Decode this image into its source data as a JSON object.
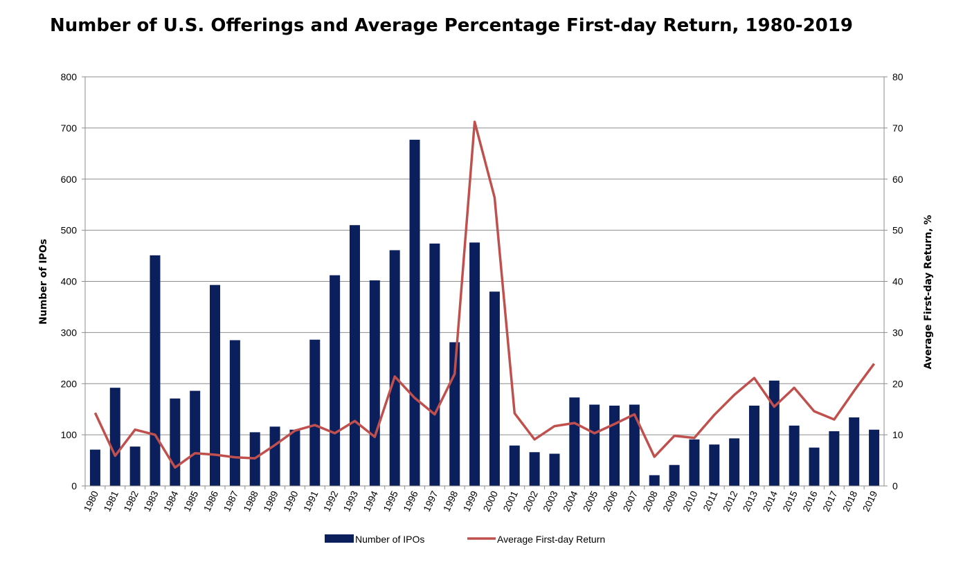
{
  "chart_data": {
    "type": "bar",
    "title": "Number of U.S. Offerings and Average Percentage First-day Return, 1980-2019",
    "xlabel": "",
    "ylabel": "Number of IPOs",
    "y2label": "Average First-day Return, %",
    "ylim": [
      0,
      800
    ],
    "y2lim": [
      0,
      80
    ],
    "yticks": [
      "0",
      "100",
      "200",
      "300",
      "400",
      "500",
      "600",
      "700",
      "800"
    ],
    "y2ticks": [
      "0",
      "10",
      "20",
      "30",
      "40",
      "50",
      "60",
      "70",
      "80"
    ],
    "grid": true,
    "legend_position": "bottom",
    "categories": [
      "1980",
      "1981",
      "1982",
      "1983",
      "1984",
      "1985",
      "1986",
      "1987",
      "1988",
      "1989",
      "1990",
      "1991",
      "1992",
      "1993",
      "1994",
      "1995",
      "1996",
      "1997",
      "1998",
      "1999",
      "2000",
      "2001",
      "2002",
      "2003",
      "2004",
      "2005",
      "2006",
      "2007",
      "2008",
      "2009",
      "2010",
      "2011",
      "2012",
      "2013",
      "2014",
      "2015",
      "2016",
      "2017",
      "2018",
      "2019"
    ],
    "series": [
      {
        "name": "Number of IPOs",
        "kind": "bar",
        "axis": "left",
        "color": "#0b1f5c",
        "values": [
          71,
          192,
          77,
          451,
          171,
          186,
          393,
          285,
          105,
          116,
          110,
          286,
          412,
          510,
          402,
          461,
          677,
          474,
          281,
          476,
          380,
          79,
          66,
          63,
          173,
          159,
          157,
          159,
          21,
          41,
          91,
          81,
          93,
          157,
          206,
          118,
          75,
          107,
          134,
          110
        ]
      },
      {
        "name": "Average First-day Return",
        "kind": "line",
        "axis": "right",
        "color": "#c0504d",
        "values": [
          14.3,
          5.9,
          11.0,
          10.0,
          3.6,
          6.4,
          6.1,
          5.6,
          5.4,
          8.0,
          10.8,
          11.9,
          10.3,
          12.7,
          9.6,
          21.4,
          17.2,
          14.0,
          21.9,
          71.2,
          56.4,
          14.2,
          9.1,
          11.7,
          12.3,
          10.3,
          12.1,
          14.0,
          5.7,
          9.8,
          9.4,
          13.9,
          17.8,
          21.1,
          15.5,
          19.2,
          14.6,
          13.0,
          18.6,
          23.9
        ]
      }
    ]
  }
}
